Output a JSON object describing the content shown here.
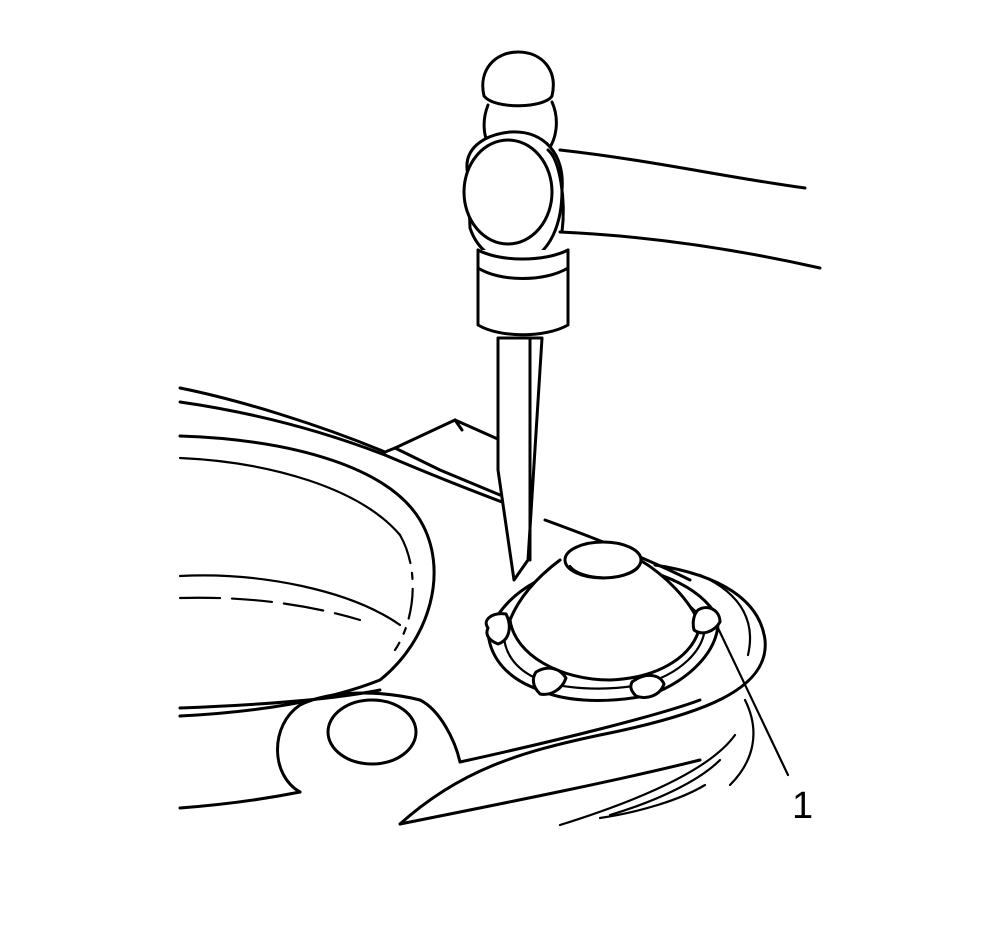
{
  "figure": {
    "callouts": [
      {
        "number": "1",
        "target": "stud-cap"
      }
    ],
    "icons": [
      "hammer-icon",
      "chisel-icon"
    ],
    "colors": {
      "line": "#000000",
      "background": "#ffffff"
    }
  }
}
